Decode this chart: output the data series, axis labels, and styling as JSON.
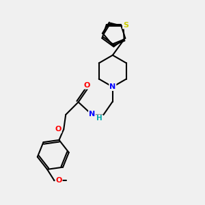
{
  "background_color": "#f0f0f0",
  "atom_colors": {
    "S": "#cccc00",
    "N": "#0000ff",
    "O": "#ff0000",
    "C": "#000000",
    "H": "#00aaaa"
  },
  "line_color": "#000000",
  "line_width": 1.5,
  "figsize": [
    3.0,
    3.0
  ],
  "dpi": 100,
  "xlim": [
    0,
    10
  ],
  "ylim": [
    0,
    10
  ]
}
